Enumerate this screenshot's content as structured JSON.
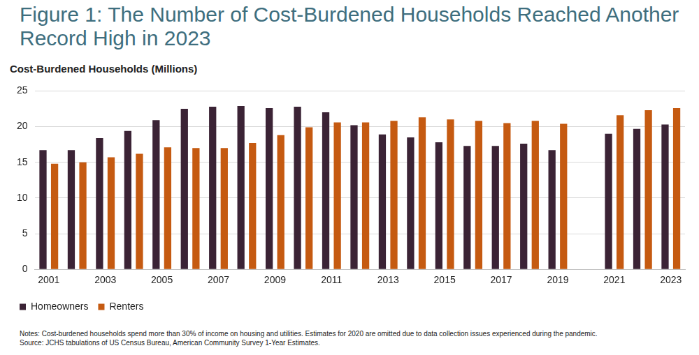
{
  "chart_data": {
    "type": "bar",
    "title": "Figure 1: The Number of Cost-Burdened Households Reached Another Record High in 2023",
    "ylabel": "Cost-Burdened Households (Millions)",
    "notes": "Notes: Cost-burdened households spend more than 30% of income on housing and utilities. Estimates for 2020 are omitted due to data collection issues experienced during the pandemic.",
    "source": "Source: JCHS tabulations of US Census Bureau, American Community Survey 1-Year Estimates.",
    "categories": [
      "2001",
      null,
      "2003",
      null,
      "2005",
      null,
      "2007",
      null,
      "2009",
      null,
      "2011",
      null,
      "2013",
      null,
      "2015",
      null,
      "2017",
      null,
      "2019",
      null,
      "2021",
      null,
      "2023"
    ],
    "series": [
      {
        "name": "Homeowners",
        "color": "#3b2335",
        "values": [
          16.7,
          16.7,
          18.4,
          19.4,
          20.9,
          22.5,
          22.8,
          22.9,
          22.6,
          22.8,
          22.0,
          20.2,
          18.9,
          18.5,
          17.8,
          17.3,
          17.3,
          17.6,
          16.7,
          null,
          19.0,
          19.7,
          20.3
        ]
      },
      {
        "name": "Renters",
        "color": "#c55a11",
        "values": [
          14.8,
          15.0,
          15.7,
          16.2,
          17.1,
          17.0,
          17.0,
          17.7,
          18.8,
          19.9,
          20.6,
          20.6,
          20.8,
          21.3,
          21.0,
          20.8,
          20.5,
          20.8,
          20.4,
          null,
          21.6,
          22.3,
          22.6
        ]
      }
    ],
    "ylim": [
      0,
      25
    ],
    "yticks": [
      0,
      5,
      10,
      15,
      20,
      25
    ],
    "grid": true,
    "legend": "bottom"
  }
}
